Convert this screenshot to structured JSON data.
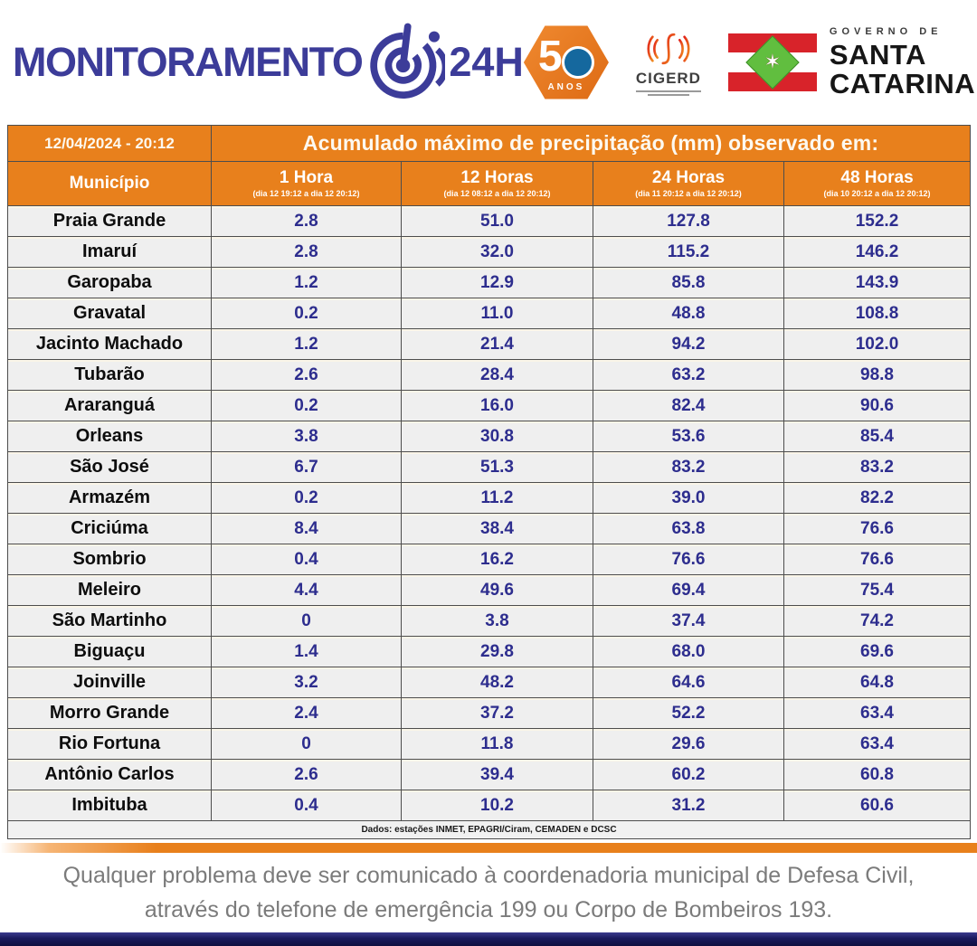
{
  "header": {
    "logo_text": "MONITORAMENTO",
    "logo_hours": "24H",
    "anos_badge": {
      "digit": "5",
      "label": "ANOS"
    },
    "cigerd": {
      "name": "CIGERD"
    },
    "governo": {
      "line1": "GOVERNO DE",
      "line2": "SANTA",
      "line3": "CATARINA"
    }
  },
  "table": {
    "datetime": "12/04/2024 - 20:12",
    "title": "Acumulado máximo de precipitação (mm) observado em:",
    "col_municipio": "Município",
    "columns": [
      {
        "label": "1 Hora",
        "sub": "(dia 12 19:12 a dia 12 20:12)"
      },
      {
        "label": "12 Horas",
        "sub": "(dia 12 08:12 a dia 12 20:12)"
      },
      {
        "label": "24 Horas",
        "sub": "(dia 11 20:12 a dia 12 20:12)"
      },
      {
        "label": "48 Horas",
        "sub": "(dia 10 20:12 a dia 12 20:12)"
      }
    ],
    "source_note": "Dados: estações INMET, EPAGRI/Ciram, CEMADEN e DCSC"
  },
  "chart_data": {
    "type": "table",
    "title": "Acumulado máximo de precipitação (mm) observado em:",
    "datetime": "12/04/2024 - 20:12",
    "columns": [
      "Município",
      "1 Hora",
      "12 Horas",
      "24 Horas",
      "48 Horas"
    ],
    "column_periods": [
      "",
      "dia 12 19:12 a dia 12 20:12",
      "dia 12 08:12 a dia 12 20:12",
      "dia 11 20:12 a dia 12 20:12",
      "dia 10 20:12 a dia 12 20:12"
    ],
    "unit": "mm",
    "rows": [
      [
        "Praia Grande",
        "2.8",
        "51.0",
        "127.8",
        "152.2"
      ],
      [
        "Imaruí",
        "2.8",
        "32.0",
        "115.2",
        "146.2"
      ],
      [
        "Garopaba",
        "1.2",
        "12.9",
        "85.8",
        "143.9"
      ],
      [
        "Gravatal",
        "0.2",
        "11.0",
        "48.8",
        "108.8"
      ],
      [
        "Jacinto Machado",
        "1.2",
        "21.4",
        "94.2",
        "102.0"
      ],
      [
        "Tubarão",
        "2.6",
        "28.4",
        "63.2",
        "98.8"
      ],
      [
        "Araranguá",
        "0.2",
        "16.0",
        "82.4",
        "90.6"
      ],
      [
        "Orleans",
        "3.8",
        "30.8",
        "53.6",
        "85.4"
      ],
      [
        "São José",
        "6.7",
        "51.3",
        "83.2",
        "83.2"
      ],
      [
        "Armazém",
        "0.2",
        "11.2",
        "39.0",
        "82.2"
      ],
      [
        "Criciúma",
        "8.4",
        "38.4",
        "63.8",
        "76.6"
      ],
      [
        "Sombrio",
        "0.4",
        "16.2",
        "76.6",
        "76.6"
      ],
      [
        "Meleiro",
        "4.4",
        "49.6",
        "69.4",
        "75.4"
      ],
      [
        "São Martinho",
        "0",
        "3.8",
        "37.4",
        "74.2"
      ],
      [
        "Biguaçu",
        "1.4",
        "29.8",
        "68.0",
        "69.6"
      ],
      [
        "Joinville",
        "3.2",
        "48.2",
        "64.6",
        "64.8"
      ],
      [
        "Morro Grande",
        "2.4",
        "37.2",
        "52.2",
        "63.4"
      ],
      [
        "Rio Fortuna",
        "0",
        "11.8",
        "29.6",
        "63.4"
      ],
      [
        "Antônio Carlos",
        "2.6",
        "39.4",
        "60.2",
        "60.8"
      ],
      [
        "Imbituba",
        "0.4",
        "10.2",
        "31.2",
        "60.6"
      ]
    ]
  },
  "footer": {
    "message_line1": "Qualquer problema deve ser comunicado à coordenadoria municipal de Defesa Civil,",
    "message_line2": "através do telefone de emergência 199 ou Corpo de Bombeiros 193."
  },
  "colors": {
    "header_orange": "#E8801C",
    "value_blue": "#2D2D8E",
    "logo_blue": "#3C3C99",
    "flag_red": "#D8232A",
    "flag_green": "#61BE3F",
    "navy_bar": "#1A1A5C"
  }
}
